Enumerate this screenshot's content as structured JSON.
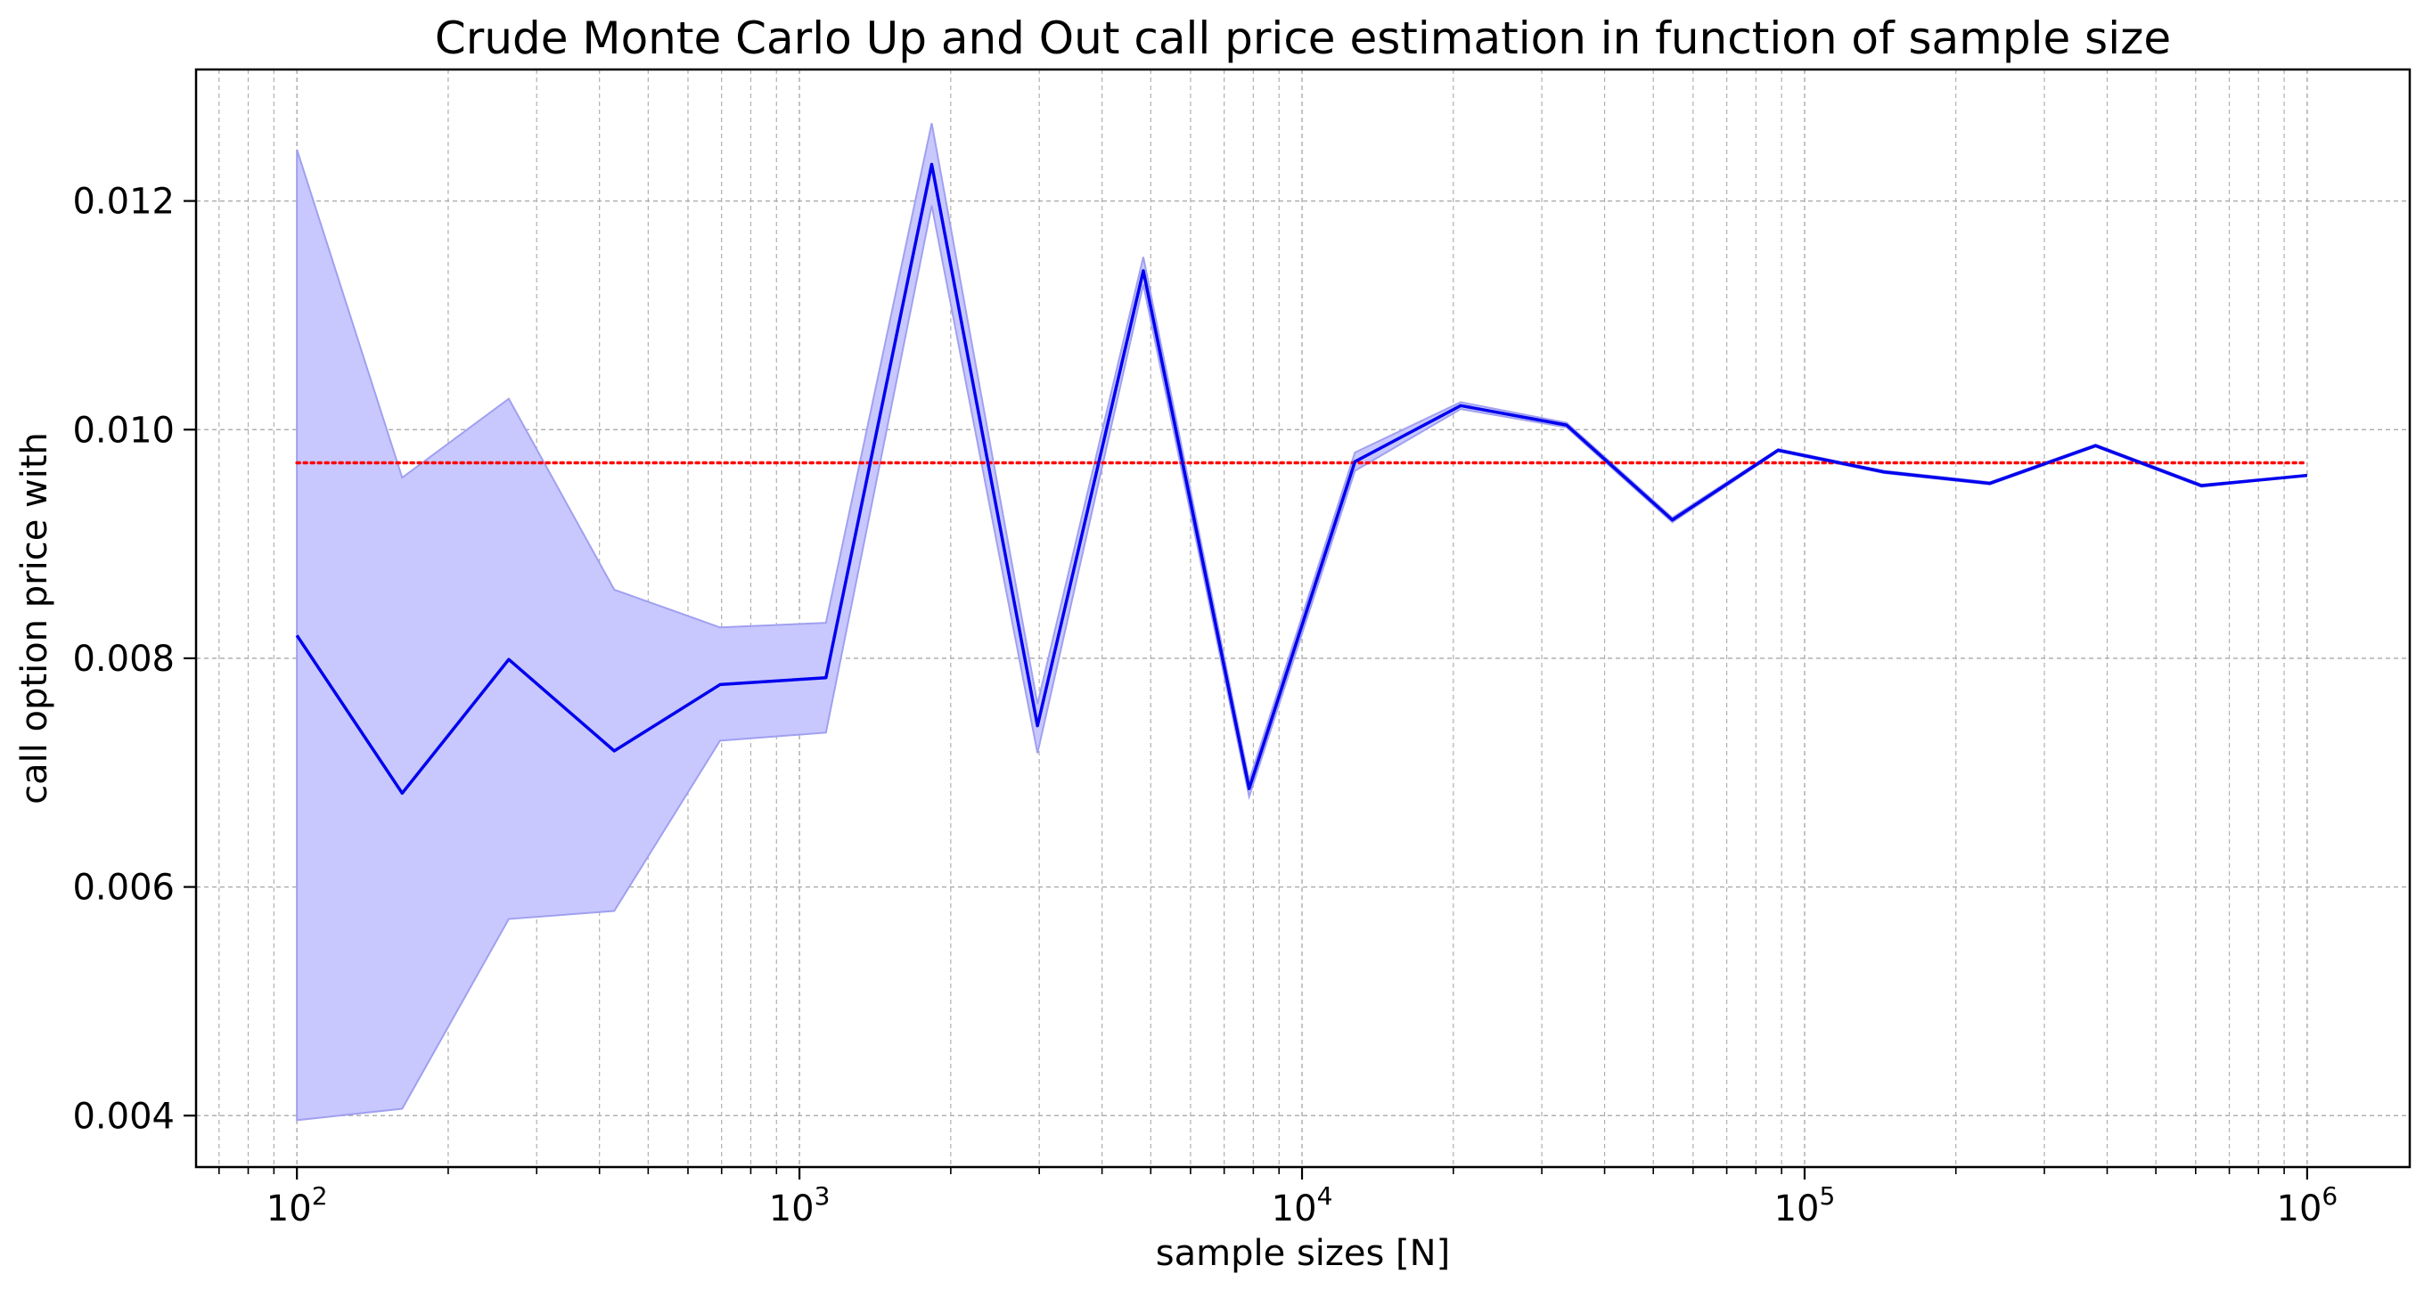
{
  "chart_data": {
    "type": "line",
    "title": "Crude Monte Carlo Up and Out call price estimation in function of sample size",
    "xlabel": "sample sizes [N]",
    "ylabel": "call option price with",
    "x_scale": "log",
    "xlim": [
      63,
      1600000
    ],
    "ylim": [
      0.00355,
      0.01315
    ],
    "grid": true,
    "x_ticks": [
      {
        "value": 100,
        "base": "10",
        "exp": "2"
      },
      {
        "value": 1000,
        "base": "10",
        "exp": "3"
      },
      {
        "value": 10000,
        "base": "10",
        "exp": "4"
      },
      {
        "value": 100000,
        "base": "10",
        "exp": "5"
      },
      {
        "value": 1000000,
        "base": "10",
        "exp": "6"
      }
    ],
    "y_ticks": [
      {
        "value": 0.004,
        "label": "0.004"
      },
      {
        "value": 0.006,
        "label": "0.006"
      },
      {
        "value": 0.008,
        "label": "0.008"
      },
      {
        "value": 0.01,
        "label": "0.010"
      },
      {
        "value": 0.012,
        "label": "0.012"
      }
    ],
    "x": [
      100,
      162,
      264,
      428,
      695,
      1129,
      1833,
      2976,
      4833,
      7848,
      12743,
      20691,
      33598,
      54556,
      88587,
      143845,
      233572,
      379269,
      615848,
      1000000
    ],
    "series": [
      {
        "type": "line",
        "color": "#0000ee",
        "values": [
          0.0082,
          0.00682,
          0.00799,
          0.00719,
          0.00777,
          0.00783,
          0.01232,
          0.00741,
          0.01139,
          0.00686,
          0.00972,
          0.01021,
          0.01004,
          0.00921,
          0.00982,
          0.00963,
          0.00953,
          0.00986,
          0.00951,
          0.0096
        ]
      },
      {
        "type": "band",
        "color": "#c8c8ff",
        "edge_color": "#a0a0f0",
        "upper": [
          0.01245,
          0.00958,
          0.01027,
          0.0086,
          0.00827,
          0.00831,
          0.01268,
          0.0076,
          0.01151,
          0.00693,
          0.0098,
          0.01024,
          0.01006,
          0.00923,
          0.00983,
          0.00964,
          0.00954,
          0.00987,
          0.00952,
          0.0096
        ],
        "lower": [
          0.00396,
          0.00406,
          0.00572,
          0.00579,
          0.00728,
          0.00735,
          0.01196,
          0.00717,
          0.01127,
          0.00679,
          0.00964,
          0.01018,
          0.01002,
          0.00919,
          0.00981,
          0.00962,
          0.00952,
          0.00985,
          0.0095,
          0.0096
        ]
      },
      {
        "type": "reference",
        "color": "#ff0000",
        "style": "dotted",
        "x_range": [
          100,
          1000000
        ],
        "value": 0.00971
      }
    ]
  }
}
